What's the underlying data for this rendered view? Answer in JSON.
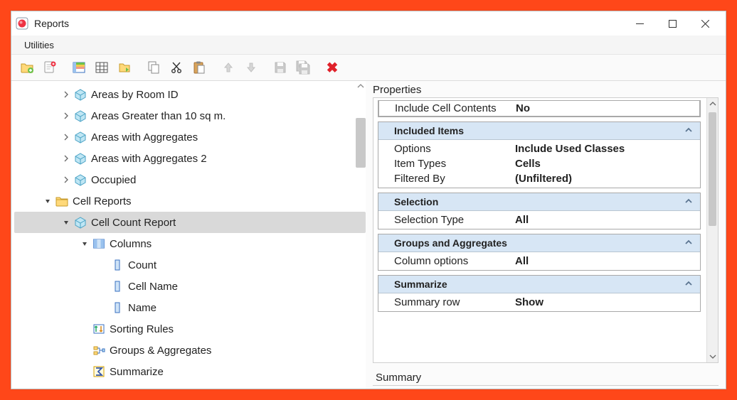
{
  "window": {
    "title": "Reports"
  },
  "menubar": {
    "items": [
      "Utilities"
    ]
  },
  "toolbar": {
    "buttons": [
      {
        "name": "new-folder",
        "enabled": true
      },
      {
        "name": "new-report",
        "enabled": true
      },
      {
        "name": "layout",
        "enabled": true,
        "groupStart": true
      },
      {
        "name": "table-grid",
        "enabled": true
      },
      {
        "name": "export",
        "enabled": true
      },
      {
        "name": "copy",
        "enabled": true,
        "groupStart": true
      },
      {
        "name": "cut",
        "enabled": true
      },
      {
        "name": "paste",
        "enabled": true
      },
      {
        "name": "move-up",
        "enabled": false,
        "groupStart": true
      },
      {
        "name": "move-down",
        "enabled": false
      },
      {
        "name": "save",
        "enabled": false,
        "groupStart": true
      },
      {
        "name": "save-all",
        "enabled": false
      },
      {
        "name": "delete",
        "enabled": true,
        "groupStart": true,
        "special": "redx"
      }
    ]
  },
  "tree": {
    "rows": [
      {
        "indent": 1,
        "expander": "closed",
        "icon": "box",
        "label": "Areas by Room ID"
      },
      {
        "indent": 1,
        "expander": "closed",
        "icon": "box",
        "label": "Areas Greater than 10 sq m."
      },
      {
        "indent": 1,
        "expander": "closed",
        "icon": "box",
        "label": "Areas with Aggregates"
      },
      {
        "indent": 1,
        "expander": "closed",
        "icon": "box",
        "label": "Areas with Aggregates 2"
      },
      {
        "indent": 1,
        "expander": "closed",
        "icon": "box",
        "label": "Occupied"
      },
      {
        "indent": 0,
        "expander": "open",
        "icon": "folder",
        "label": "Cell Reports"
      },
      {
        "indent": 1,
        "expander": "open",
        "icon": "box",
        "label": "Cell Count Report",
        "selected": true
      },
      {
        "indent": 2,
        "expander": "open",
        "icon": "columns",
        "label": "Columns"
      },
      {
        "indent": 3,
        "expander": "none",
        "icon": "col",
        "label": "Count"
      },
      {
        "indent": 3,
        "expander": "none",
        "icon": "col",
        "label": "Cell Name"
      },
      {
        "indent": 3,
        "expander": "none",
        "icon": "col",
        "label": "Name"
      },
      {
        "indent": 2,
        "expander": "none",
        "icon": "sort",
        "label": "Sorting Rules"
      },
      {
        "indent": 2,
        "expander": "none",
        "icon": "groups",
        "label": "Groups & Aggregates"
      },
      {
        "indent": 2,
        "expander": "none",
        "icon": "sigma",
        "label": "Summarize"
      }
    ],
    "indentPx": 26,
    "leftGutterPx": 40
  },
  "properties": {
    "header": "Properties",
    "topRow": {
      "k": "Include Cell Contents",
      "v": "No"
    },
    "sections": [
      {
        "title": "Included Items",
        "rows": [
          {
            "k": "Options",
            "v": "Include Used Classes"
          },
          {
            "k": "Item Types",
            "v": "Cells"
          },
          {
            "k": "Filtered By",
            "v": "(Unfiltered)"
          }
        ]
      },
      {
        "title": "Selection",
        "rows": [
          {
            "k": "Selection Type",
            "v": "All"
          }
        ]
      },
      {
        "title": "Groups and Aggregates",
        "rows": [
          {
            "k": "Column options",
            "v": "All"
          }
        ]
      },
      {
        "title": "Summarize",
        "rows": [
          {
            "k": "Summary row",
            "v": "Show"
          }
        ]
      }
    ],
    "bottom": {
      "header": "Summary"
    }
  },
  "colors": {
    "outer_bg": "#ff4719",
    "window_bg": "#fbfbfb",
    "section_header_bg": "#d7e6f5",
    "selected_row_bg": "#d9d9d9",
    "border": "#a9a9a9"
  }
}
